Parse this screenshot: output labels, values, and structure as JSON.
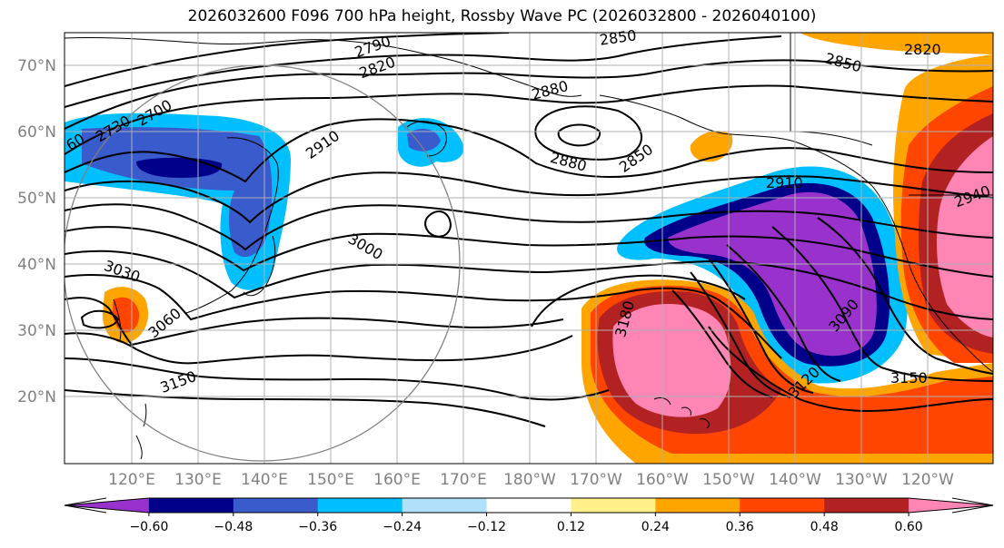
{
  "title": "2026032600 F096 700 hPa height, Rossby Wave PC (2026032800 - 2026040100)",
  "lat_labels": [
    "70°N",
    "60°N",
    "50°N",
    "40°N",
    "30°N",
    "20°N"
  ],
  "lon_labels": [
    "120°E",
    "130°E",
    "140°E",
    "150°E",
    "160°E",
    "170°E",
    "180°W",
    "170°W",
    "160°W",
    "150°W",
    "140°W",
    "130°W",
    "120°W"
  ],
  "contour_labels": [
    "2790",
    "2820",
    "2850",
    "2880",
    "2910",
    "2700",
    "2730",
    "60",
    "2880",
    "2850",
    "2910",
    "2940",
    "2850",
    "2820",
    "3000",
    "3030",
    "3060",
    "3150",
    "3180",
    "3090",
    "3120",
    "3150"
  ],
  "colorbar": {
    "ticks": [
      "−0.60",
      "−0.48",
      "−0.36",
      "−0.24",
      "−0.12",
      "0.12",
      "0.24",
      "0.36",
      "0.48",
      "0.60"
    ],
    "colors": [
      "#9932cc",
      "#00008b",
      "#3a5bcb",
      "#00bfff",
      "#b0e0fa",
      "#ffffff",
      "#fff08a",
      "#ffa500",
      "#ff4500",
      "#b22222",
      "#ff85b4"
    ]
  }
}
